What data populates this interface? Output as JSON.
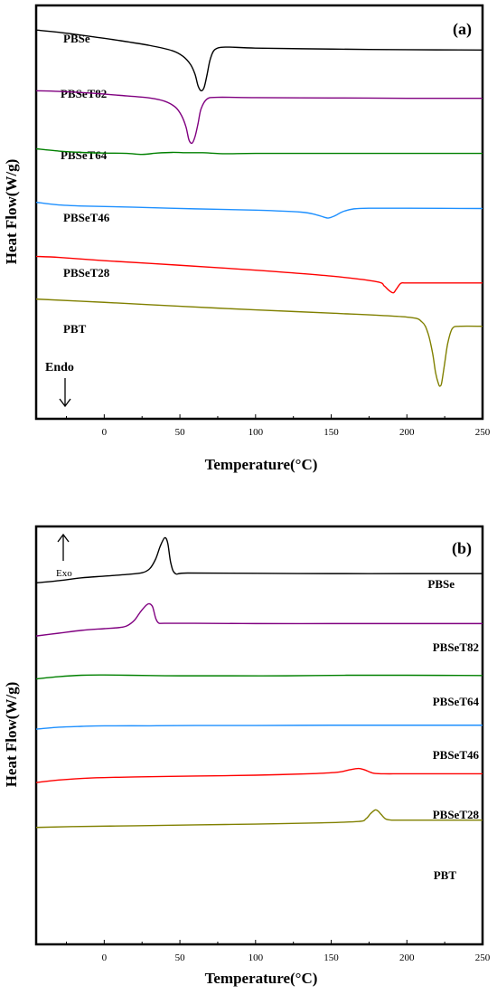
{
  "chart_data": [
    {
      "panel": "(a)",
      "type": "line",
      "xlabel": "Temperature(°C)",
      "ylabel": "Heat Flow(W/g)",
      "xlim": [
        -45,
        250
      ],
      "xticks": [
        0,
        50,
        100,
        150,
        200,
        250
      ],
      "arrow_label": "Endo",
      "arrow_direction": "down",
      "yaxis": "offset curves, no tick labels",
      "series": [
        {
          "name": "PBSe",
          "color": "#000000",
          "x": [
            -45,
            -30,
            -10,
            10,
            30,
            45,
            52,
            57,
            60,
            62,
            64,
            66,
            68,
            70,
            73,
            80,
            100,
            150,
            200,
            250
          ],
          "y": [
            92.5,
            91.8,
            90.6,
            89.3,
            87.8,
            86.2,
            84.5,
            82,
            79,
            75.5,
            74,
            75,
            79,
            83.5,
            86.5,
            87.3,
            87,
            86.7,
            86.5,
            86.4
          ]
        },
        {
          "name": "PBSeT82",
          "color": "#800080",
          "x": [
            -45,
            -30,
            -10,
            10,
            30,
            40,
            47,
            51,
            54,
            56,
            58,
            60,
            62,
            64,
            68,
            75,
            100,
            150,
            200,
            250
          ],
          "y": [
            74,
            73.8,
            73.3,
            72.6,
            71.8,
            70.8,
            69,
            66.5,
            63,
            59,
            58,
            60,
            64,
            68.5,
            71.5,
            72,
            71.9,
            71.8,
            71.7,
            71.7
          ]
        },
        {
          "name": "PBSeT64",
          "color": "#008000",
          "x": [
            -45,
            -30,
            -15,
            0,
            15,
            25,
            35,
            45,
            55,
            65,
            80,
            100,
            150,
            200,
            250
          ],
          "y": [
            56.3,
            55.6,
            55.2,
            55,
            54.9,
            54.6,
            55,
            55.2,
            55.1,
            55.1,
            54.8,
            54.9,
            54.9,
            54.9,
            54.9
          ]
        },
        {
          "name": "PBSeT46",
          "color": "#1e90ff",
          "x": [
            -45,
            -30,
            -10,
            20,
            60,
            100,
            130,
            140,
            145,
            148,
            152,
            158,
            165,
            175,
            200,
            250
          ],
          "y": [
            40,
            39.2,
            38.8,
            38.5,
            38,
            37.6,
            37,
            36.2,
            35.5,
            35.2,
            35.8,
            37.2,
            38,
            38.2,
            38.2,
            38.1
          ]
        },
        {
          "name": "PBSeT28",
          "color": "#ff0000",
          "x": [
            -45,
            -30,
            0,
            50,
            100,
            150,
            180,
            185,
            188,
            191,
            193,
            196,
            200,
            220,
            250
          ],
          "y": [
            23.5,
            23.2,
            22.2,
            20.8,
            19.3,
            17.5,
            15.8,
            14.5,
            13.2,
            12.4,
            13.5,
            15.3,
            15.4,
            15.4,
            15.4
          ]
        },
        {
          "name": "PBT",
          "color": "#808000",
          "x": [
            -45,
            0,
            50,
            100,
            150,
            200,
            210,
            214,
            217,
            219,
            221,
            222,
            223,
            225,
            227,
            230,
            235,
            250
          ],
          "y": [
            10.5,
            9.5,
            8.3,
            7.2,
            6.2,
            5,
            3.5,
            0,
            -6,
            -12,
            -15.5,
            -16,
            -15,
            -9,
            -3,
            1.5,
            2.2,
            2.2
          ]
        }
      ]
    },
    {
      "panel": "(b)",
      "type": "line",
      "xlabel": "Temperature(°C)",
      "ylabel": "Heat Flow(W/g)",
      "xlim": [
        -45,
        250
      ],
      "xticks": [
        0,
        50,
        100,
        150,
        200,
        250
      ],
      "arrow_label": "Exo",
      "arrow_direction": "up",
      "yaxis": "offset curves, no tick labels",
      "series": [
        {
          "name": "PBSe",
          "color": "#000000",
          "x": [
            -45,
            -30,
            -15,
            0,
            15,
            25,
            30,
            34,
            37,
            40,
            42,
            44,
            47,
            55,
            100,
            150,
            200,
            250
          ],
          "y": [
            90,
            90.8,
            91.8,
            92.4,
            93,
            93.6,
            95,
            98.5,
            103,
            106,
            104,
            97,
            93.3,
            93.5,
            93.4,
            93.3,
            93.3,
            93.3
          ]
        },
        {
          "name": "PBSeT82",
          "color": "#800080",
          "x": [
            -45,
            -30,
            -15,
            0,
            10,
            15,
            20,
            24,
            28,
            30,
            32,
            34,
            36,
            40,
            60,
            100,
            150,
            200,
            250
          ],
          "y": [
            71.2,
            72.2,
            73.2,
            73.8,
            74.2,
            74.8,
            76.8,
            79.8,
            82.2,
            82.6,
            81.5,
            77.5,
            75.8,
            75.7,
            75.7,
            75.6,
            75.6,
            75.6,
            75.6
          ]
        },
        {
          "name": "PBSeT64",
          "color": "#008000",
          "x": [
            -45,
            -30,
            -15,
            0,
            30,
            50,
            80,
            120,
            160,
            200,
            250
          ],
          "y": [
            56,
            56.8,
            57.3,
            57.4,
            57.2,
            57.1,
            57.1,
            57.1,
            57.3,
            57.3,
            57.2
          ]
        },
        {
          "name": "PBSeT46",
          "color": "#1e90ff",
          "x": [
            -45,
            -30,
            -15,
            0,
            30,
            60,
            100,
            150,
            200,
            250
          ],
          "y": [
            38.2,
            38.9,
            39.2,
            39.4,
            39.4,
            39.5,
            39.5,
            39.6,
            39.6,
            39.6
          ]
        },
        {
          "name": "PBSeT28",
          "color": "#ff0000",
          "x": [
            -45,
            -30,
            -10,
            20,
            60,
            100,
            140,
            155,
            162,
            168,
            172,
            178,
            185,
            200,
            250
          ],
          "y": [
            19.3,
            20.2,
            20.9,
            21.3,
            21.6,
            21.9,
            22.5,
            23,
            23.8,
            24.3,
            23.8,
            22.6,
            22.4,
            22.4,
            22.4
          ]
        },
        {
          "name": "PBT",
          "color": "#808000",
          "x": [
            -45,
            -20,
            20,
            60,
            100,
            140,
            168,
            173,
            176,
            179,
            181,
            183,
            186,
            190,
            200,
            250
          ],
          "y": [
            3.4,
            3.7,
            4,
            4.3,
            4.6,
            5,
            5.5,
            6.5,
            8.3,
            9.6,
            9.2,
            8,
            6.4,
            6,
            6,
            6
          ]
        }
      ]
    }
  ]
}
